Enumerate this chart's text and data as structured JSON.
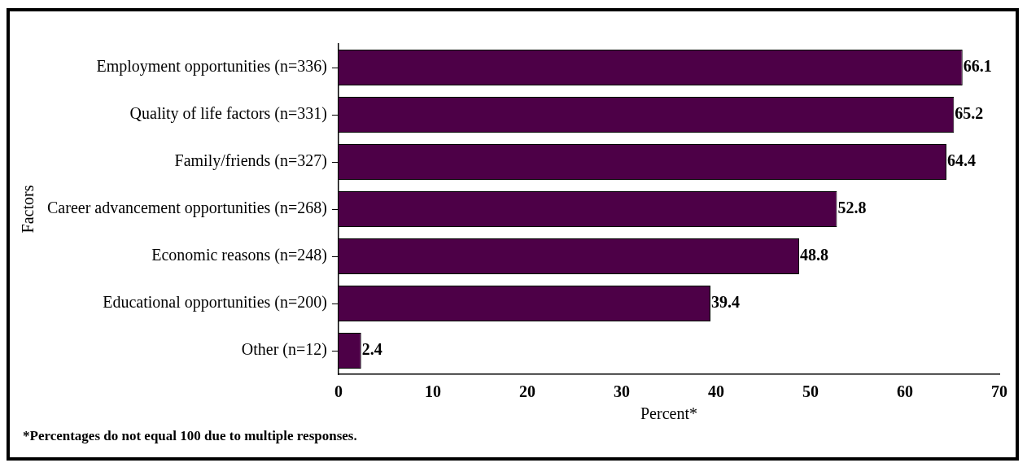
{
  "chart_data": {
    "type": "bar",
    "orientation": "horizontal",
    "xlabel": "Percent*",
    "ylabel": "Factors",
    "categories": [
      "Employment opportunities (n=336)",
      "Quality of life factors (n=331)",
      "Family/friends (n=327)",
      "Career advancement opportunities (n=268)",
      "Economic reasons (n=248)",
      "Educational opportunities (n=200)",
      "Other (n=12)"
    ],
    "values": [
      66.1,
      65.2,
      64.4,
      52.8,
      48.8,
      39.4,
      2.4
    ],
    "color": "#4d0047",
    "xlim": [
      0,
      70
    ],
    "xticks": [
      0,
      10,
      20,
      30,
      40,
      50,
      60,
      70
    ],
    "grid": false,
    "legend": false,
    "data_labels": true,
    "annotations": [
      "*Percentages do not equal 100 due to multiple responses."
    ]
  }
}
